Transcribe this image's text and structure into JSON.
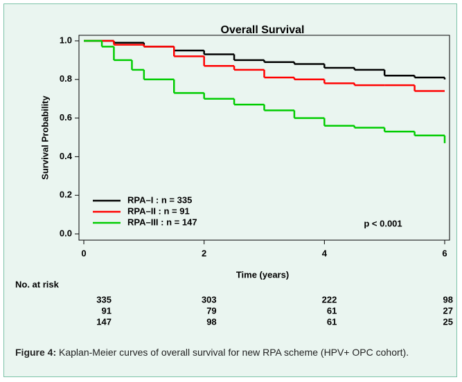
{
  "chart_data": {
    "type": "step",
    "title": "Overall Survival",
    "xlabel": "Time (years)",
    "ylabel": "Survival Probability",
    "xlim": [
      0,
      6
    ],
    "ylim": [
      0,
      1.0
    ],
    "xticks": [
      0,
      2,
      4,
      6
    ],
    "yticks": [
      {
        "value": 0,
        "label": "0.0"
      },
      {
        "value": 0.2,
        "label": "0.2"
      },
      {
        "value": 0.4,
        "label": "0.4"
      },
      {
        "value": 0.6,
        "label": "0.6"
      },
      {
        "value": 0.8,
        "label": "0.8"
      },
      {
        "value": 1.0,
        "label": "1.0"
      }
    ],
    "legend": "bottom-left",
    "annotation": "p < 0.001",
    "series": [
      {
        "name": "RPA–I : n = 335",
        "color": "#000000",
        "x": [
          0,
          0.5,
          1,
          1.5,
          2,
          2.5,
          3,
          3.5,
          4,
          4.5,
          5,
          5.5,
          6
        ],
        "values": [
          1.0,
          0.99,
          0.97,
          0.95,
          0.93,
          0.9,
          0.89,
          0.88,
          0.86,
          0.85,
          0.82,
          0.81,
          0.8
        ]
      },
      {
        "name": "RPA–II : n = 91",
        "color": "#ff0000",
        "x": [
          0,
          0.5,
          1,
          1.5,
          2,
          2.5,
          3,
          3.5,
          4,
          4.5,
          5,
          5.5,
          6
        ],
        "values": [
          1.0,
          0.98,
          0.97,
          0.92,
          0.87,
          0.85,
          0.81,
          0.8,
          0.78,
          0.77,
          0.77,
          0.74,
          0.74
        ]
      },
      {
        "name": "RPA–III : n = 147",
        "color": "#00cc00",
        "x": [
          0,
          0.3,
          0.5,
          0.8,
          1,
          1.5,
          2,
          2.5,
          3,
          3.5,
          4,
          4.5,
          5,
          5.5,
          6,
          6
        ],
        "values": [
          1.0,
          0.97,
          0.9,
          0.85,
          0.8,
          0.73,
          0.7,
          0.67,
          0.64,
          0.6,
          0.56,
          0.55,
          0.53,
          0.51,
          0.5,
          0.47
        ]
      }
    ]
  },
  "risk_table": {
    "title": "No. at risk",
    "rows": [
      [
        "335",
        "303",
        "222",
        "98"
      ],
      [
        "91",
        "79",
        "61",
        "27"
      ],
      [
        "147",
        "98",
        "61",
        "25"
      ]
    ]
  },
  "caption": {
    "label": "Figure 4:",
    "text": " Kaplan-Meier curves of overall survival for new RPA scheme (HPV+ OPC cohort)."
  }
}
